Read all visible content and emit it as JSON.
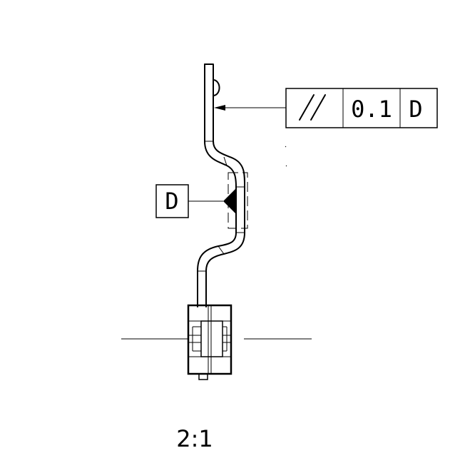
{
  "feature_control_frame": {
    "tolerance": "0.1",
    "datum": "D"
  },
  "datum_feature_label": "D",
  "scale_label": "2:1"
}
